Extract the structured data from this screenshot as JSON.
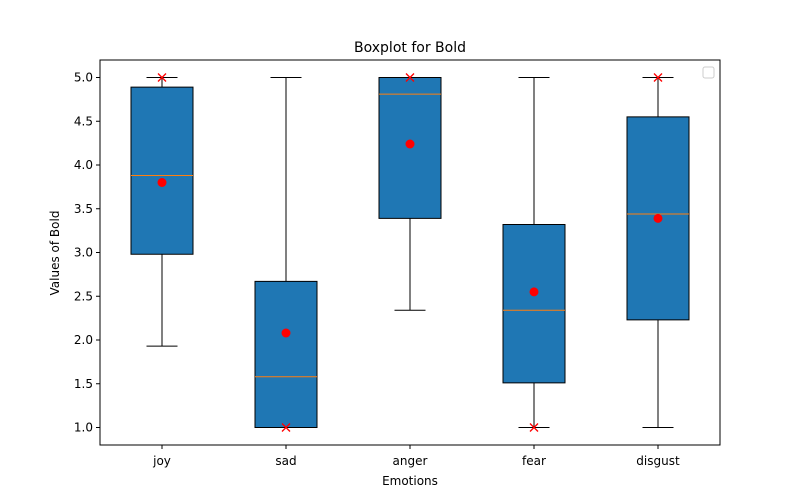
{
  "chart_data": {
    "type": "boxplot",
    "title": "Boxplot for Bold",
    "xlabel": "Emotions",
    "ylabel": "Values of Bold",
    "ylim": [
      0.8,
      5.2
    ],
    "yticks": [
      "1.0",
      "1.5",
      "2.0",
      "2.5",
      "3.0",
      "3.5",
      "4.0",
      "4.5",
      "5.0"
    ],
    "ytick_values": [
      1.0,
      1.5,
      2.0,
      2.5,
      3.0,
      3.5,
      4.0,
      4.5,
      5.0
    ],
    "grid": false,
    "legend": "top-right",
    "legend_entries": [],
    "categories": [
      "joy",
      "sad",
      "anger",
      "fear",
      "disgust"
    ],
    "boxes": [
      {
        "whisker_low": 1.93,
        "q1": 2.98,
        "median": 3.88,
        "q3": 4.89,
        "whisker_high": 5.0,
        "mean": 3.8,
        "fliers": [
          5.0
        ]
      },
      {
        "whisker_low": 1.0,
        "q1": 1.0,
        "median": 1.58,
        "q3": 2.67,
        "whisker_high": 5.0,
        "mean": 2.08,
        "fliers": [
          1.0
        ]
      },
      {
        "whisker_low": 2.34,
        "q1": 3.39,
        "median": 4.81,
        "q3": 5.0,
        "whisker_high": 5.0,
        "mean": 4.24,
        "fliers": [
          5.0
        ]
      },
      {
        "whisker_low": 1.0,
        "q1": 1.51,
        "median": 2.34,
        "q3": 3.32,
        "whisker_high": 5.0,
        "mean": 2.55,
        "fliers": [
          1.0
        ]
      },
      {
        "whisker_low": 1.0,
        "q1": 2.23,
        "median": 3.44,
        "q3": 4.55,
        "whisker_high": 5.0,
        "mean": 3.39,
        "fliers": [
          5.0
        ]
      }
    ],
    "colors": {
      "box_fill": "#1f77b4",
      "median_line": "#ff7f0e",
      "mean_marker": "#ff0000",
      "flier_marker": "#ff0000",
      "edge": "#000000"
    }
  }
}
